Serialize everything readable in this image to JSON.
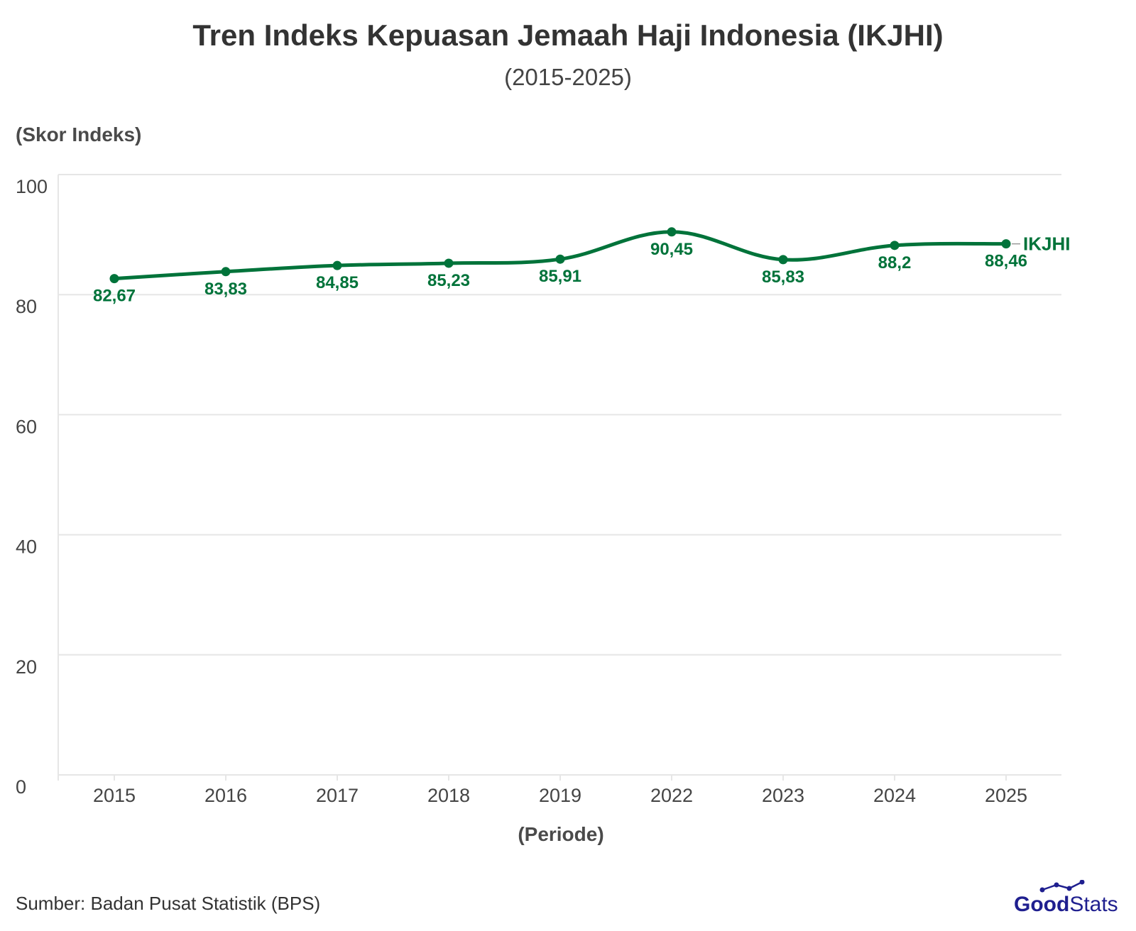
{
  "chart_data": {
    "type": "line",
    "title": "Tren Indeks Kepuasan Jemaah Haji Indonesia (IKJHI)",
    "subtitle": "(2015-2025)",
    "ylabel": "(Skor Indeks)",
    "xlabel": "(Periode)",
    "categories": [
      "2015",
      "2016",
      "2017",
      "2018",
      "2019",
      "2022",
      "2023",
      "2024",
      "2025"
    ],
    "series": [
      {
        "name": "IKJHI",
        "values": [
          82.67,
          83.83,
          84.85,
          85.23,
          85.91,
          90.45,
          85.83,
          88.2,
          88.46
        ],
        "labels": [
          "82,67",
          "83,83",
          "84,85",
          "85,23",
          "85,91",
          "90,45",
          "85,83",
          "88,2",
          "88,46"
        ],
        "color": "#00733A"
      }
    ],
    "ylim": [
      0,
      100
    ],
    "yticks": [
      "0",
      "20",
      "40",
      "60",
      "80",
      "100"
    ],
    "grid": true,
    "legend": "none"
  },
  "footer": {
    "source": "Sumber: Badan Pusat Statistik (BPS)",
    "brand": {
      "part1": "Good",
      "part2": "Stats",
      "color": "#1f1f8f"
    }
  },
  "colors": {
    "grid": "#e6e6e6",
    "axis_text": "#444444",
    "title": "#333333"
  }
}
